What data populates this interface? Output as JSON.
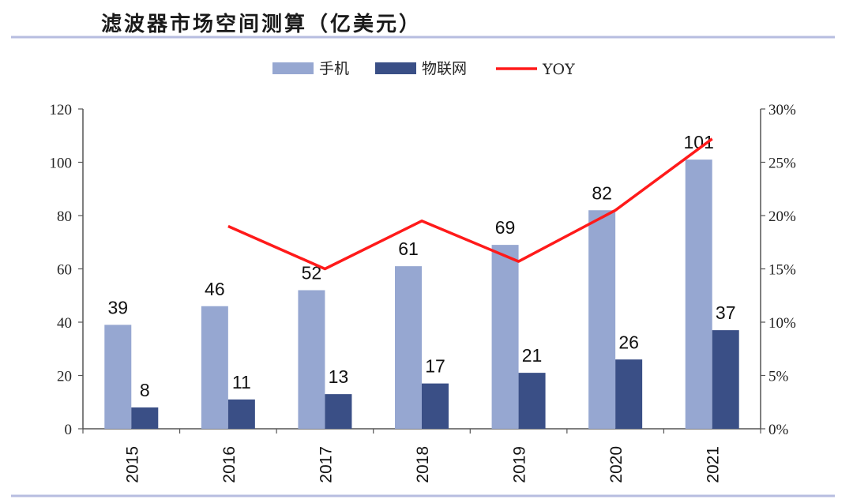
{
  "title": "滤波器市场空间测算（亿美元）",
  "colors": {
    "phone": "#96a7d1",
    "iot": "#3a4f86",
    "yoy": "#ff1a1a",
    "axis": "#555555",
    "rule": "#b7bde0"
  },
  "chart_data": {
    "type": "bar",
    "categories": [
      "2015",
      "2016",
      "2017",
      "2018",
      "2019",
      "2020",
      "2021"
    ],
    "series": [
      {
        "name": "手机",
        "type": "bar",
        "axis": "left",
        "values": [
          39,
          46,
          52,
          61,
          69,
          82,
          101
        ]
      },
      {
        "name": "物联网",
        "type": "bar",
        "axis": "left",
        "values": [
          8,
          11,
          13,
          17,
          21,
          26,
          37
        ]
      },
      {
        "name": "YOY",
        "type": "line",
        "axis": "right",
        "values": [
          null,
          0.19,
          0.15,
          0.195,
          0.157,
          0.205,
          0.272
        ]
      }
    ],
    "y_left": {
      "min": 0,
      "max": 120,
      "ticks": [
        "0",
        "20",
        "40",
        "60",
        "80",
        "100",
        "120"
      ]
    },
    "y_right": {
      "min": 0,
      "max": 0.3,
      "ticks": [
        "0%",
        "5%",
        "10%",
        "15%",
        "20%",
        "25%",
        "30%"
      ]
    },
    "legend_position": "top-center",
    "grid": false
  }
}
